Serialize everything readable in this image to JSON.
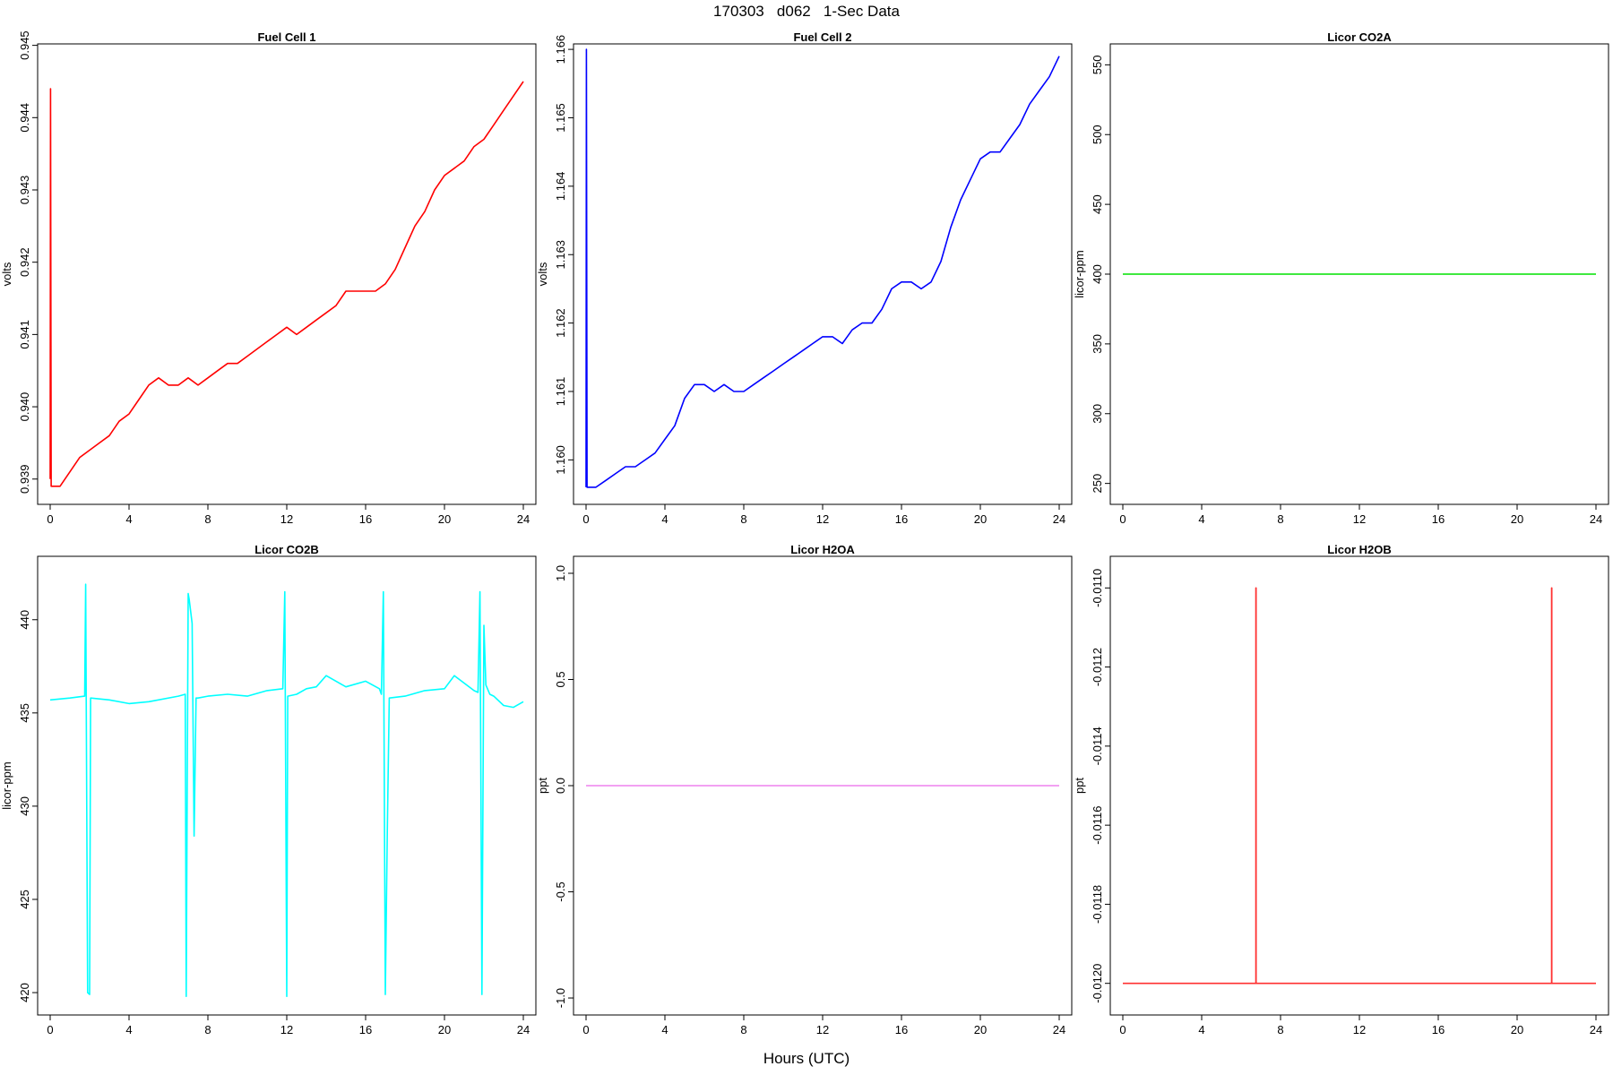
{
  "page": {
    "title": "170303   d062   1-Sec Data",
    "x_axis_title": "Hours (UTC)"
  },
  "chart_data": [
    {
      "type": "line",
      "title": "Fuel Cell 1",
      "ylabel": "volts",
      "color": "#ff0000",
      "xlim": [
        0,
        24
      ],
      "ylim": [
        0.93865,
        0.94502
      ],
      "xticks": [
        "0",
        "4",
        "8",
        "12",
        "16",
        "20",
        "24"
      ],
      "yticks": [
        "0.939",
        "0.940",
        "0.941",
        "0.942",
        "0.943",
        "0.944",
        "0.945"
      ],
      "series": [
        {
          "x": [
            0,
            0.02,
            0.05,
            0.5,
            1,
            1.5,
            2,
            2.5,
            3,
            3.5,
            4,
            4.5,
            5,
            5.5,
            6,
            6.5,
            7,
            7.5,
            8,
            8.5,
            9,
            9.5,
            10,
            10.5,
            11,
            11.5,
            12,
            12.5,
            13,
            13.5,
            14,
            14.5,
            15,
            15.5,
            16,
            16.5,
            17,
            17.5,
            18,
            18.5,
            19,
            19.5,
            20,
            20.5,
            21,
            21.5,
            22,
            22.5,
            23,
            23.5,
            24
          ],
          "y": [
            0.939,
            0.9444,
            0.9389,
            0.9389,
            0.9391,
            0.9393,
            0.9394,
            0.9395,
            0.9396,
            0.9398,
            0.9399,
            0.9401,
            0.9403,
            0.9404,
            0.9403,
            0.9403,
            0.9404,
            0.9403,
            0.9404,
            0.9405,
            0.9406,
            0.9406,
            0.9407,
            0.9408,
            0.9409,
            0.941,
            0.9411,
            0.941,
            0.9411,
            0.9412,
            0.9413,
            0.9414,
            0.9416,
            0.9416,
            0.9416,
            0.9416,
            0.9417,
            0.9419,
            0.9422,
            0.9425,
            0.9427,
            0.943,
            0.9432,
            0.9433,
            0.9434,
            0.9436,
            0.9437,
            0.9439,
            0.9441,
            0.9443,
            0.9445
          ]
        }
      ]
    },
    {
      "type": "line",
      "title": "Fuel Cell 2",
      "ylabel": "volts",
      "color": "#0000ff",
      "xlim": [
        0,
        24
      ],
      "ylim": [
        1.15935,
        1.16608
      ],
      "xticks": [
        "0",
        "4",
        "8",
        "12",
        "16",
        "20",
        "24"
      ],
      "yticks": [
        "1.160",
        "1.161",
        "1.162",
        "1.163",
        "1.164",
        "1.165",
        "1.166"
      ],
      "series": [
        {
          "x": [
            0,
            0.02,
            0.05,
            0.5,
            1,
            1.5,
            2,
            2.5,
            3,
            3.5,
            4,
            4.5,
            5,
            5.5,
            6,
            6.5,
            7,
            7.5,
            8,
            8.5,
            9,
            9.5,
            10,
            10.5,
            11,
            11.5,
            12,
            12.5,
            13,
            13.5,
            14,
            14.5,
            15,
            15.5,
            16,
            16.5,
            17,
            17.5,
            18,
            18.5,
            19,
            19.5,
            20,
            20.5,
            21,
            21.5,
            22,
            22.5,
            23,
            23.5,
            24
          ],
          "y": [
            1.1596,
            1.166,
            1.1596,
            1.1596,
            1.1597,
            1.1598,
            1.1599,
            1.1599,
            1.16,
            1.1601,
            1.1603,
            1.1605,
            1.1609,
            1.1611,
            1.1611,
            1.161,
            1.1611,
            1.161,
            1.161,
            1.1611,
            1.1612,
            1.1613,
            1.1614,
            1.1615,
            1.1616,
            1.1617,
            1.1618,
            1.1618,
            1.1617,
            1.1619,
            1.162,
            1.162,
            1.1622,
            1.1625,
            1.1626,
            1.1626,
            1.1625,
            1.1626,
            1.1629,
            1.1634,
            1.1638,
            1.1641,
            1.1644,
            1.1645,
            1.1645,
            1.1647,
            1.1649,
            1.1652,
            1.1654,
            1.1656,
            1.1659
          ]
        }
      ]
    },
    {
      "type": "line",
      "title": "Licor CO2A",
      "ylabel": "licor-ppm",
      "color": "#00e000",
      "xlim": [
        0,
        24
      ],
      "ylim": [
        235,
        565
      ],
      "xticks": [
        "0",
        "4",
        "8",
        "12",
        "16",
        "20",
        "24"
      ],
      "yticks": [
        "250",
        "300",
        "350",
        "400",
        "450",
        "500",
        "550"
      ],
      "series": [
        {
          "x": [
            0,
            24
          ],
          "y": [
            400,
            400
          ]
        }
      ]
    },
    {
      "type": "line",
      "title": "Licor CO2B",
      "ylabel": "licor-ppm",
      "color": "#00ffff",
      "xlim": [
        0,
        24
      ],
      "ylim": [
        418.8,
        443.4
      ],
      "xticks": [
        "0",
        "4",
        "8",
        "12",
        "16",
        "20",
        "24"
      ],
      "yticks": [
        "420",
        "425",
        "430",
        "435",
        "440"
      ],
      "series": [
        {
          "x": [
            0,
            1,
            1.75,
            1.8,
            1.9,
            2.0,
            2.05,
            3,
            4,
            5,
            6.5,
            6.85,
            6.9,
            7.0,
            7.05,
            7.2,
            7.3,
            7.4,
            7.5,
            8,
            9,
            10,
            11,
            11.8,
            11.9,
            12.0,
            12.05,
            12.5,
            13,
            13.5,
            14,
            15,
            16,
            16.7,
            16.8,
            16.9,
            17.0,
            17.1,
            17.2,
            18,
            19,
            20,
            20.5,
            21.5,
            21.7,
            21.8,
            21.9,
            22.0,
            22.1,
            22.3,
            22.5,
            23,
            23.5,
            24
          ],
          "y": [
            435.7,
            435.8,
            435.9,
            441.9,
            420.0,
            419.9,
            435.8,
            435.7,
            435.5,
            435.6,
            435.9,
            436.0,
            419.8,
            441.4,
            441.1,
            439.8,
            428.4,
            435.8,
            435.8,
            435.9,
            436.0,
            435.9,
            436.2,
            436.3,
            441.5,
            419.8,
            435.9,
            436.0,
            436.3,
            436.4,
            437.0,
            436.4,
            436.7,
            436.3,
            436.0,
            441.5,
            419.9,
            428.6,
            435.8,
            435.9,
            436.2,
            436.3,
            437.0,
            436.2,
            436.1,
            441.5,
            419.9,
            439.7,
            436.5,
            436.0,
            435.9,
            435.4,
            435.3,
            435.6
          ]
        }
      ]
    },
    {
      "type": "line",
      "title": "Licor H2OA",
      "ylabel": "ppt",
      "color": "#ee82ee",
      "xlim": [
        0,
        24
      ],
      "ylim": [
        -1.08,
        1.08
      ],
      "xticks": [
        "0",
        "4",
        "8",
        "12",
        "16",
        "20",
        "24"
      ],
      "yticks": [
        "-1.0",
        "-0.5",
        "0.0",
        "0.5",
        "1.0"
      ],
      "series": [
        {
          "x": [
            0,
            24
          ],
          "y": [
            0,
            0
          ]
        }
      ]
    },
    {
      "type": "line",
      "title": "Licor H2OB",
      "ylabel": "ppt",
      "color": "#ff3030",
      "xlim": [
        0,
        24
      ],
      "ylim": [
        -0.01208,
        -0.01092
      ],
      "xticks": [
        "0",
        "4",
        "8",
        "12",
        "16",
        "20",
        "24"
      ],
      "yticks": [
        "-0.0120",
        "-0.0118",
        "-0.0116",
        "-0.0114",
        "-0.0112",
        "-0.0110"
      ],
      "series": [
        {
          "x": [
            0,
            6.75,
            6.75,
            6.76,
            6.76,
            21.75,
            21.75,
            21.76,
            21.76,
            24
          ],
          "y": [
            -0.012,
            -0.012,
            -0.011,
            -0.011,
            -0.012,
            -0.012,
            -0.011,
            -0.011,
            -0.012,
            -0.012
          ]
        }
      ]
    }
  ]
}
